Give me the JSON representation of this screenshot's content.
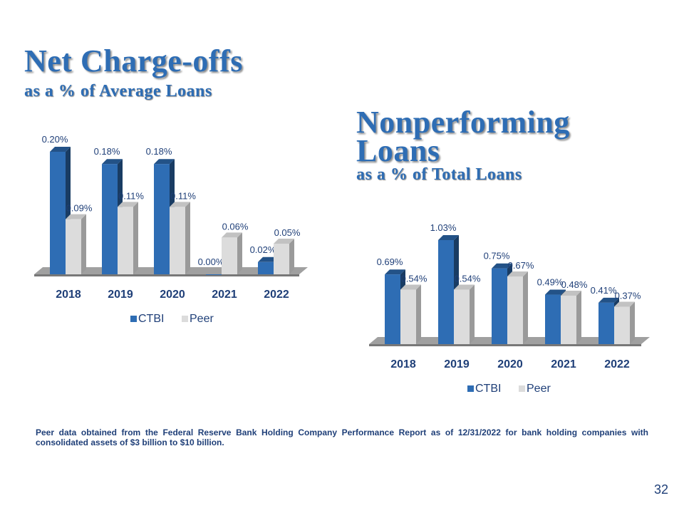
{
  "slide": {
    "page_number": "32",
    "footnote": "Peer data obtained from the Federal Reserve Bank Holding Company Performance Report as of 12/31/2022 for bank holding companies with consolidated assets of $3 billion to $10 billion."
  },
  "chart1": {
    "title": "Net Charge-offs",
    "subtitle": "as a % of Average Loans"
  },
  "chart2": {
    "title": "Nonperforming Loans",
    "subtitle": "as a % of Total Loans"
  },
  "colors": {
    "title": "#2e6db4",
    "ctbi": "#2e6db4",
    "peer": "#dcdcdc",
    "floor": "#a0a0a0",
    "footnote": "#1f3f78"
  },
  "chart_data": [
    {
      "type": "bar",
      "title": "Net Charge-offs",
      "subtitle": "as a % of Average Loans",
      "categories": [
        "2018",
        "2019",
        "2020",
        "2021",
        "2022"
      ],
      "series": [
        {
          "name": "CTBI",
          "values": [
            0.2,
            0.18,
            0.18,
            0.0,
            0.02
          ],
          "labels": [
            "0.20%",
            "0.18%",
            "0.18%",
            "0.00%",
            "0.02%"
          ]
        },
        {
          "name": "Peer",
          "values": [
            0.09,
            0.11,
            0.11,
            0.06,
            0.05
          ],
          "labels": [
            "0.09%",
            "0.11%",
            "0.11%",
            "0.06%",
            "0.05%"
          ]
        }
      ],
      "legend_position": "bottom",
      "ylim": [
        0,
        0.2
      ],
      "grid": false
    },
    {
      "type": "bar",
      "title": "Nonperforming Loans",
      "subtitle": "as a % of Total Loans",
      "categories": [
        "2018",
        "2019",
        "2020",
        "2021",
        "2022"
      ],
      "series": [
        {
          "name": "CTBI",
          "values": [
            0.69,
            1.03,
            0.75,
            0.49,
            0.41
          ],
          "labels": [
            "0.69%",
            "1.03%",
            "0.75%",
            "0.49%",
            "0.41%"
          ]
        },
        {
          "name": "Peer",
          "values": [
            0.54,
            0.54,
            0.67,
            0.48,
            0.37
          ],
          "labels": [
            "0.54%",
            "0.54%",
            "0.67%",
            "0.48%",
            "0.37%"
          ]
        }
      ],
      "legend_position": "bottom",
      "ylim": [
        0,
        1.03
      ],
      "grid": false
    }
  ]
}
